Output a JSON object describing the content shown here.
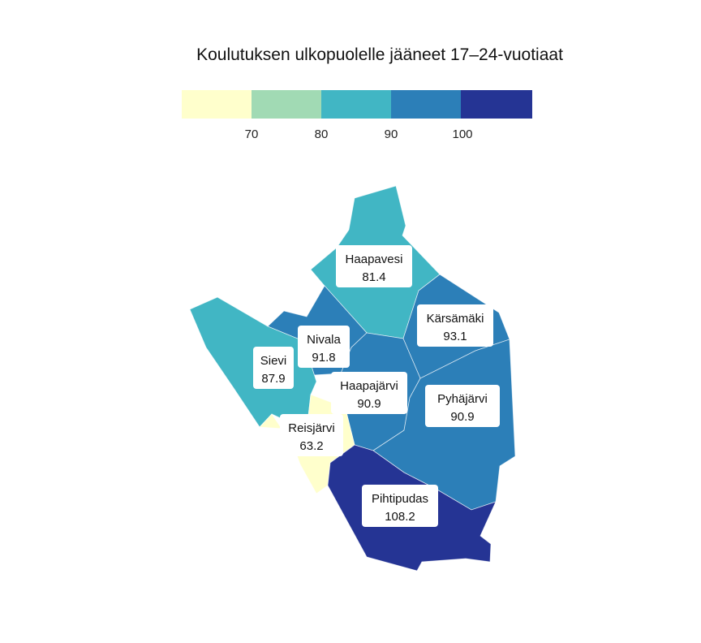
{
  "title": "Koulutuksen ulkopuolelle jääneet 17–24-vuotiaat",
  "legend": {
    "colors": [
      "#ffffcc",
      "#a1dab4",
      "#41b6c4",
      "#2c7fb8",
      "#253494"
    ],
    "ticks": [
      "70",
      "80",
      "90",
      "100"
    ]
  },
  "regions": [
    {
      "name": "Haapavesi",
      "value": "81.4",
      "color": "#41b6c4"
    },
    {
      "name": "Kärsämäki",
      "value": "93.1",
      "color": "#2c7fb8"
    },
    {
      "name": "Nivala",
      "value": "91.8",
      "color": "#2c7fb8"
    },
    {
      "name": "Sievi",
      "value": "87.9",
      "color": "#41b6c4"
    },
    {
      "name": "Haapajärvi",
      "value": "90.9",
      "color": "#2c7fb8"
    },
    {
      "name": "Pyhäjärvi",
      "value": "90.9",
      "color": "#2c7fb8"
    },
    {
      "name": "Reisjärvi",
      "value": "63.2",
      "color": "#ffffcc"
    },
    {
      "name": "Pihtipudas",
      "value": "108.2",
      "color": "#253494"
    }
  ]
}
